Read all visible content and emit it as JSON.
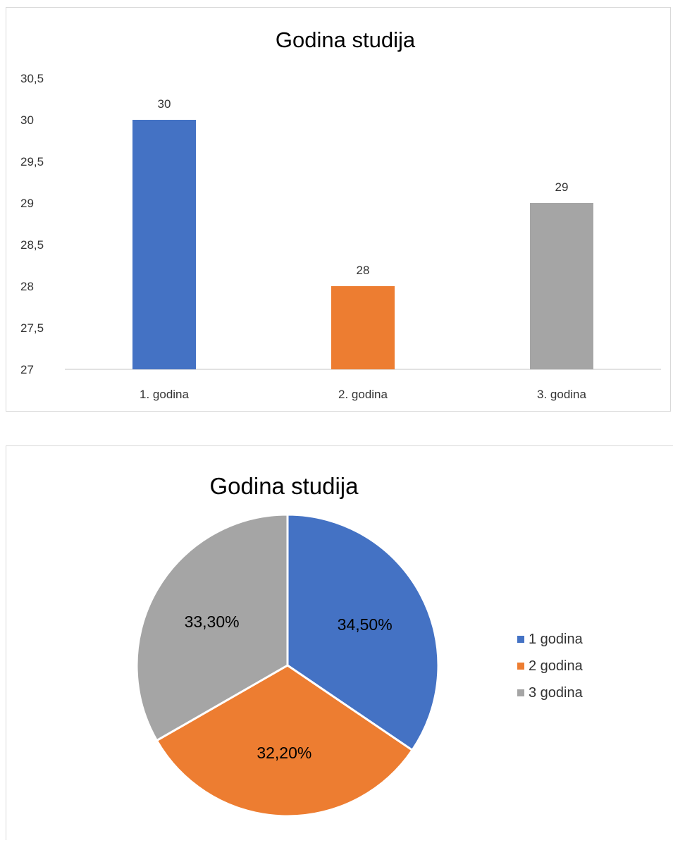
{
  "chart_data": [
    {
      "type": "bar",
      "title": "Godina studija",
      "categories": [
        "1. godina",
        "2. godina",
        "3. godina"
      ],
      "values": [
        30,
        28,
        29
      ],
      "value_labels": [
        "30",
        "28",
        "29"
      ],
      "colors": [
        "#4472c4",
        "#ed7d31",
        "#a5a5a5"
      ],
      "ylim": [
        27,
        30.5
      ],
      "yticks": [
        27,
        27.5,
        28,
        28.5,
        29,
        29.5,
        30,
        30.5
      ],
      "ytick_labels": [
        "27",
        "27,5",
        "28",
        "28,5",
        "29",
        "29,5",
        "30",
        "30,5"
      ],
      "grid": false,
      "xlabel": "",
      "ylabel": ""
    },
    {
      "type": "pie",
      "title": "Godina studija",
      "labels": [
        "1 godina",
        "2 godina",
        "3 godina"
      ],
      "values": [
        34.5,
        32.2,
        33.3
      ],
      "value_labels": [
        "34,50%",
        "32,20%",
        "33,30%"
      ],
      "colors": [
        "#4472c4",
        "#ed7d31",
        "#a5a5a5"
      ],
      "legend_position": "right"
    }
  ]
}
